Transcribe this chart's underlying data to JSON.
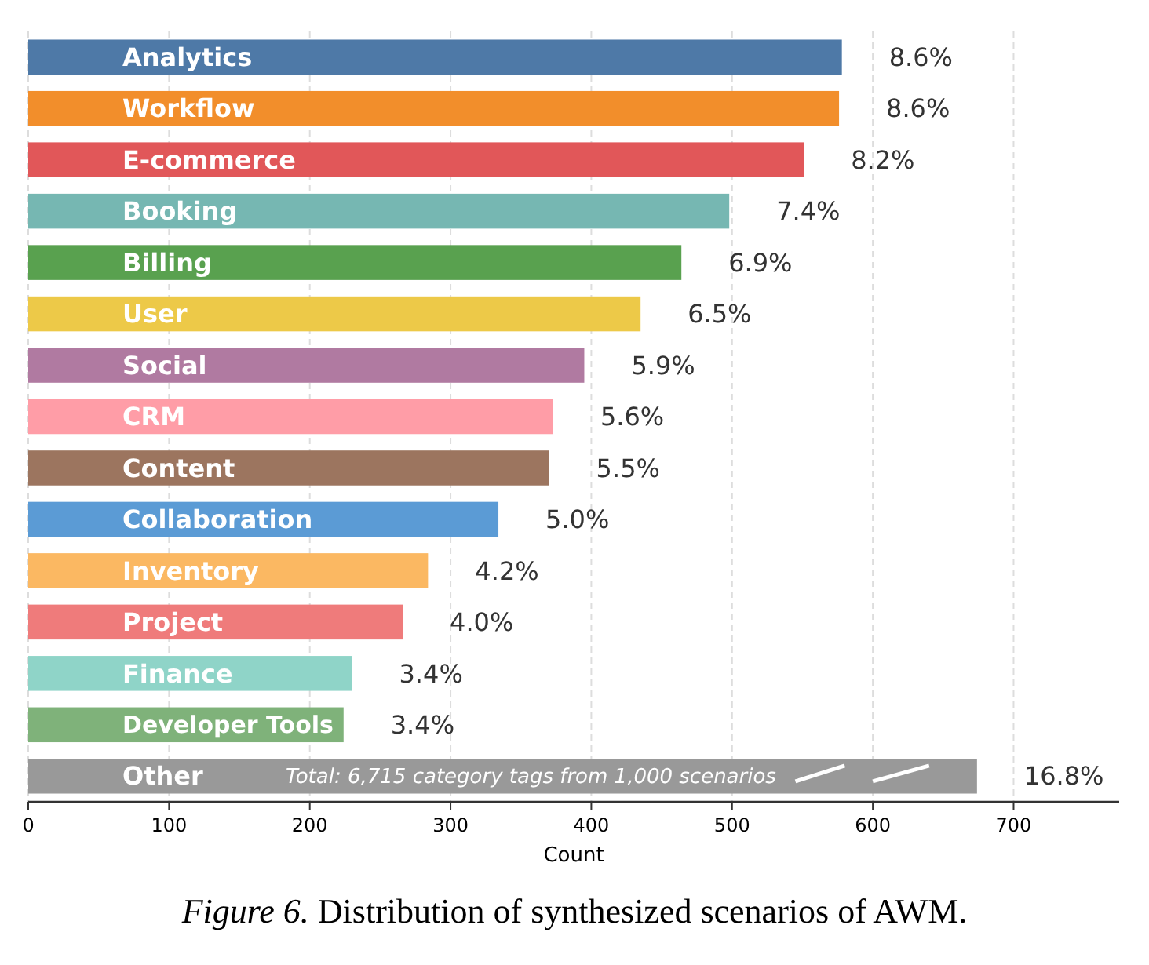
{
  "chart_data": {
    "type": "bar",
    "orientation": "horizontal",
    "categories": [
      "Analytics",
      "Workflow",
      "E-commerce",
      "Booking",
      "Billing",
      "User",
      "Social",
      "CRM",
      "Content",
      "Collaboration",
      "Inventory",
      "Project",
      "Finance",
      "Developer Tools",
      "Other"
    ],
    "values": [
      578,
      576,
      551,
      498,
      464,
      435,
      395,
      373,
      370,
      334,
      284,
      266,
      230,
      224,
      674
    ],
    "colors": [
      "#4e79a7",
      "#f28e2b",
      "#e15759",
      "#76b7b2",
      "#59a14f",
      "#edc948",
      "#b07aa1",
      "#ff9da7",
      "#9c755f",
      "#5b9bd5",
      "#fbb862",
      "#ef7b7b",
      "#8fd4c8",
      "#7fb27a",
      "#999999"
    ],
    "xlim": [
      0,
      775
    ],
    "xticks": [
      0,
      100,
      200,
      300,
      400,
      500,
      600,
      700
    ],
    "xlabel": "Count",
    "grid": "x",
    "annotations": [
      {
        "text": "8.6%",
        "x": 578,
        "y": "Analytics"
      },
      {
        "text": "8.6%",
        "x": 576,
        "y": "Workflow"
      },
      {
        "text": "8.2%",
        "x": 551,
        "y": "E-commerce"
      },
      {
        "text": "7.4%",
        "x": 498,
        "y": "Booking"
      },
      {
        "text": "6.9%",
        "x": 464,
        "y": "Billing"
      },
      {
        "text": "6.5%",
        "x": 435,
        "y": "User"
      },
      {
        "text": "5.9%",
        "x": 395,
        "y": "Social"
      },
      {
        "text": "5.6%",
        "x": 373,
        "y": "CRM"
      },
      {
        "text": "5.5%",
        "x": 370,
        "y": "Content"
      },
      {
        "text": "5.0%",
        "x": 334,
        "y": "Collaboration"
      },
      {
        "text": "4.2%",
        "x": 284,
        "y": "Inventory"
      },
      {
        "text": "4.0%",
        "x": 266,
        "y": "Project"
      },
      {
        "text": "3.4%",
        "x": 230,
        "y": "Finance"
      },
      {
        "text": "3.4%",
        "x": 224,
        "y": "Developer Tools"
      },
      {
        "text": "16.8%",
        "x": 674,
        "y": "Other"
      },
      "Total: 6,715 category tags from 1,000 scenarios",
      "Figure 6. Distribution of synthesized scenarios of AWM."
    ]
  }
}
